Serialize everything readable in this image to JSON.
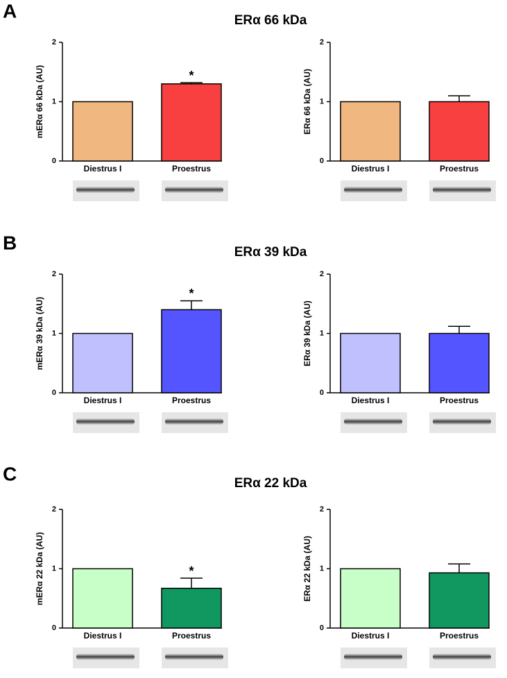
{
  "panels": [
    {
      "label": "A",
      "title": "ERα 66 kDa"
    },
    {
      "label": "B",
      "title": "ERα 39 kDa"
    },
    {
      "label": "C",
      "title": "ERα 22 kDa"
    }
  ],
  "chart_data": [
    {
      "type": "bar",
      "y_label": "mERα 66 kDa (AU)",
      "categories": [
        "Diestrus I",
        "Proestrus"
      ],
      "values": [
        1.0,
        1.3
      ],
      "errors": [
        0,
        0.02
      ],
      "significance": [
        null,
        "*"
      ],
      "colors": [
        "#f0b880",
        "#f84040"
      ],
      "ylim": [
        0,
        2
      ],
      "yticks": [
        0,
        1,
        2
      ]
    },
    {
      "type": "bar",
      "y_label": "ERα 66 kDa (AU)",
      "categories": [
        "Diestrus I",
        "Proestrus"
      ],
      "values": [
        1.0,
        1.0
      ],
      "errors": [
        0,
        0.1
      ],
      "colors": [
        "#f0b880",
        "#f84040"
      ],
      "ylim": [
        0,
        2
      ],
      "yticks": [
        0,
        1,
        2
      ]
    },
    {
      "type": "bar",
      "y_label": "mERα 39 kDa (AU)",
      "categories": [
        "Diestrus I",
        "Proestrus"
      ],
      "values": [
        1.0,
        1.4
      ],
      "errors": [
        0,
        0.15
      ],
      "significance": [
        null,
        "*"
      ],
      "colors": [
        "#c0c0ff",
        "#5555ff"
      ],
      "ylim": [
        0,
        2
      ],
      "yticks": [
        0,
        1,
        2
      ]
    },
    {
      "type": "bar",
      "y_label": "ERα 39 kDa (AU)",
      "categories": [
        "Diestrus I",
        "Proestrus"
      ],
      "values": [
        1.0,
        1.0
      ],
      "errors": [
        0,
        0.12
      ],
      "colors": [
        "#c0c0ff",
        "#5555ff"
      ],
      "ylim": [
        0,
        2
      ],
      "yticks": [
        0,
        1,
        2
      ]
    },
    {
      "type": "bar",
      "y_label": "mERα 22 kDa (AU)",
      "categories": [
        "Diestrus I",
        "Proestrus"
      ],
      "values": [
        1.0,
        0.67
      ],
      "errors": [
        0,
        0.17
      ],
      "significance": [
        null,
        "*"
      ],
      "colors": [
        "#c8ffc8",
        "#109860"
      ],
      "ylim": [
        0,
        2
      ],
      "yticks": [
        0,
        1,
        2
      ]
    },
    {
      "type": "bar",
      "y_label": "ERα 22 kDa (AU)",
      "categories": [
        "Diestrus I",
        "Proestrus"
      ],
      "values": [
        1.0,
        0.93
      ],
      "errors": [
        0,
        0.15
      ],
      "colors": [
        "#c8ffc8",
        "#109860"
      ],
      "ylim": [
        0,
        2
      ],
      "yticks": [
        0,
        1,
        2
      ]
    }
  ]
}
